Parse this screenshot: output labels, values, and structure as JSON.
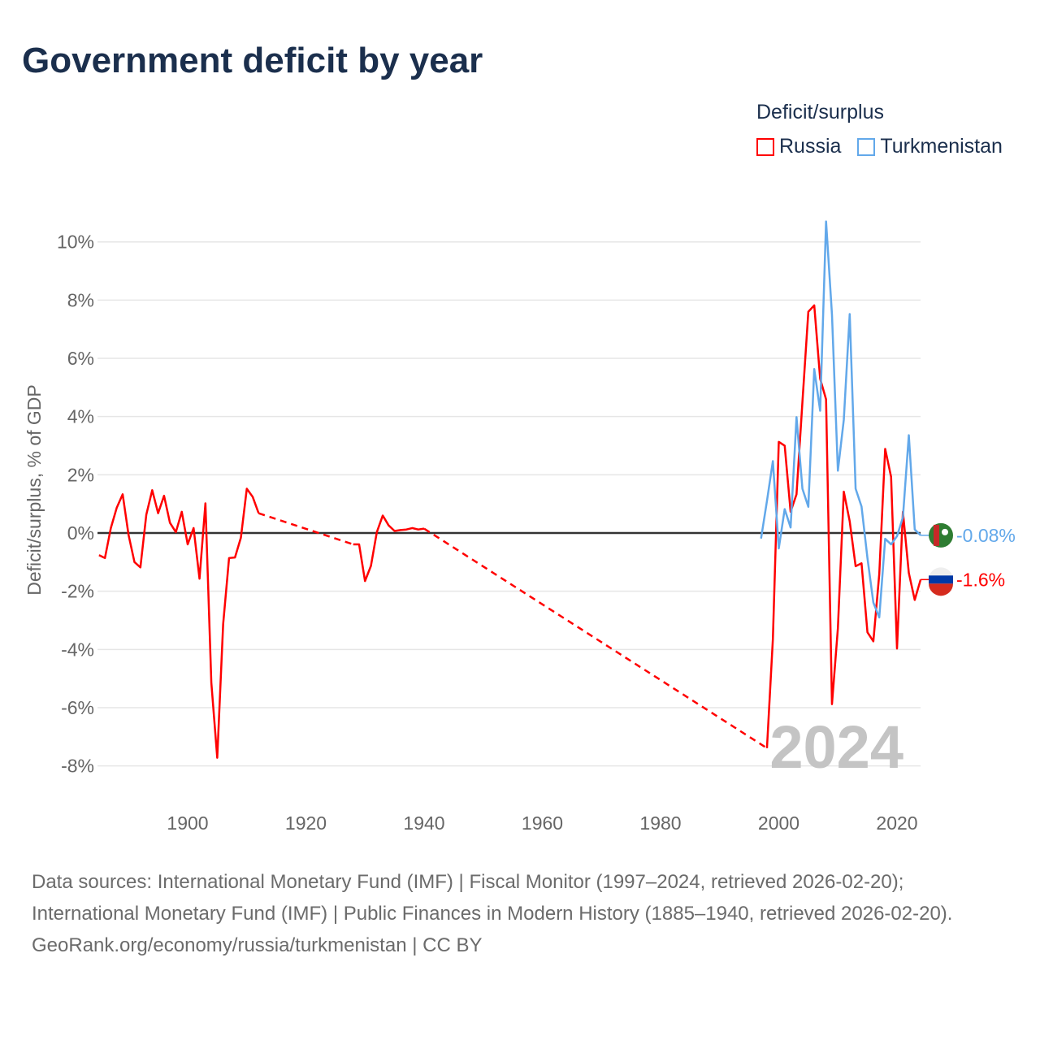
{
  "title": "Government deficit by year",
  "legend": {
    "title": "Deficit/surplus",
    "items": [
      {
        "name": "Russia",
        "color": "#ff0000"
      },
      {
        "name": "Turkmenistan",
        "color": "#62a8ea"
      }
    ]
  },
  "footer": {
    "sources": "Data sources: International Monetary Fund (IMF) | Fiscal Monitor (1997–2024, retrieved 2026-02-20); International Monetary Fund (IMF) | Public Finances in Modern History (1885–1940, retrieved 2026-02-20).",
    "credit": "GeoRank.org/economy/russia/turkmenistan | CC BY"
  },
  "chart_data": {
    "type": "line",
    "title": "Government deficit by year",
    "xlabel": "",
    "ylabel": "Deficit/surplus, % of GDP",
    "xlim": [
      1885,
      2024
    ],
    "ylim": [
      -8,
      10
    ],
    "xticks": [
      1900,
      1920,
      1940,
      1960,
      1980,
      2000,
      2020
    ],
    "yticks": [
      -8,
      -6,
      -4,
      -2,
      0,
      2,
      4,
      6,
      8,
      10
    ],
    "ytick_labels": [
      "-8%",
      "-6%",
      "-4%",
      "-2%",
      "0%",
      "2%",
      "4%",
      "6%",
      "8%",
      "10%"
    ],
    "grid": true,
    "legend_position": "top-right",
    "year_label": "2024",
    "series": [
      {
        "name": "Russia",
        "color": "#ff0000",
        "end_label": "-1.6%",
        "points": [
          [
            1885,
            -0.76
          ],
          [
            1886,
            -0.86
          ],
          [
            1887,
            0.17
          ],
          [
            1888,
            0.87
          ],
          [
            1889,
            1.33
          ],
          [
            1890,
            -0.07
          ],
          [
            1891,
            -1.0
          ],
          [
            1892,
            -1.18
          ],
          [
            1893,
            0.63
          ],
          [
            1894,
            1.47
          ],
          [
            1895,
            0.68
          ],
          [
            1896,
            1.28
          ],
          [
            1897,
            0.35
          ],
          [
            1898,
            0.03
          ],
          [
            1899,
            0.73
          ],
          [
            1900,
            -0.39
          ],
          [
            1901,
            0.17
          ],
          [
            1902,
            -1.57
          ],
          [
            1903,
            1.02
          ],
          [
            1904,
            -5.14
          ],
          [
            1905,
            -7.72
          ],
          [
            1906,
            -3.13
          ],
          [
            1907,
            -0.86
          ],
          [
            1908,
            -0.84
          ],
          [
            1909,
            -0.16
          ],
          [
            1910,
            1.52
          ],
          [
            1911,
            1.24
          ],
          [
            1912,
            0.68
          ],
          [
            1928,
            -0.39
          ],
          [
            1929,
            -0.39
          ],
          [
            1930,
            -1.65
          ],
          [
            1931,
            -1.13
          ],
          [
            1932,
            0.03
          ],
          [
            1933,
            0.6
          ],
          [
            1934,
            0.26
          ],
          [
            1935,
            0.07
          ],
          [
            1936,
            0.1
          ],
          [
            1937,
            0.12
          ],
          [
            1938,
            0.17
          ],
          [
            1939,
            0.12
          ],
          [
            1940,
            0.15
          ],
          [
            1998,
            -7.39
          ],
          [
            1999,
            -3.65
          ],
          [
            2000,
            3.13
          ],
          [
            2001,
            3.0
          ],
          [
            2002,
            0.73
          ],
          [
            2003,
            1.33
          ],
          [
            2004,
            4.5
          ],
          [
            2005,
            7.6
          ],
          [
            2006,
            7.82
          ],
          [
            2007,
            5.3
          ],
          [
            2008,
            4.59
          ],
          [
            2009,
            -5.88
          ],
          [
            2010,
            -3.27
          ],
          [
            2011,
            1.42
          ],
          [
            2012,
            0.4
          ],
          [
            2013,
            -1.14
          ],
          [
            2014,
            -1.04
          ],
          [
            2015,
            -3.41
          ],
          [
            2016,
            -3.72
          ],
          [
            2017,
            -1.41
          ],
          [
            2018,
            2.89
          ],
          [
            2019,
            1.93
          ],
          [
            2020,
            -3.97
          ],
          [
            2021,
            0.73
          ],
          [
            2022,
            -1.37
          ],
          [
            2023,
            -2.3
          ],
          [
            2024,
            -1.6
          ]
        ]
      },
      {
        "name": "Turkmenistan",
        "color": "#62a8ea",
        "end_label": "-0.08%",
        "points": [
          [
            1997,
            -0.19
          ],
          [
            1998,
            1.1
          ],
          [
            1999,
            2.47
          ],
          [
            2000,
            -0.53
          ],
          [
            2001,
            0.82
          ],
          [
            2002,
            0.19
          ],
          [
            2003,
            3.98
          ],
          [
            2004,
            1.52
          ],
          [
            2005,
            0.9
          ],
          [
            2006,
            5.63
          ],
          [
            2007,
            4.2
          ],
          [
            2008,
            10.7
          ],
          [
            2009,
            7.5
          ],
          [
            2010,
            2.14
          ],
          [
            2011,
            3.89
          ],
          [
            2012,
            7.52
          ],
          [
            2013,
            1.52
          ],
          [
            2014,
            0.91
          ],
          [
            2015,
            -0.86
          ],
          [
            2016,
            -2.39
          ],
          [
            2017,
            -2.9
          ],
          [
            2018,
            -0.2
          ],
          [
            2019,
            -0.39
          ],
          [
            2020,
            -0.11
          ],
          [
            2021,
            0.54
          ],
          [
            2022,
            3.36
          ],
          [
            2023,
            0.12
          ],
          [
            2024,
            -0.08
          ]
        ]
      }
    ]
  }
}
